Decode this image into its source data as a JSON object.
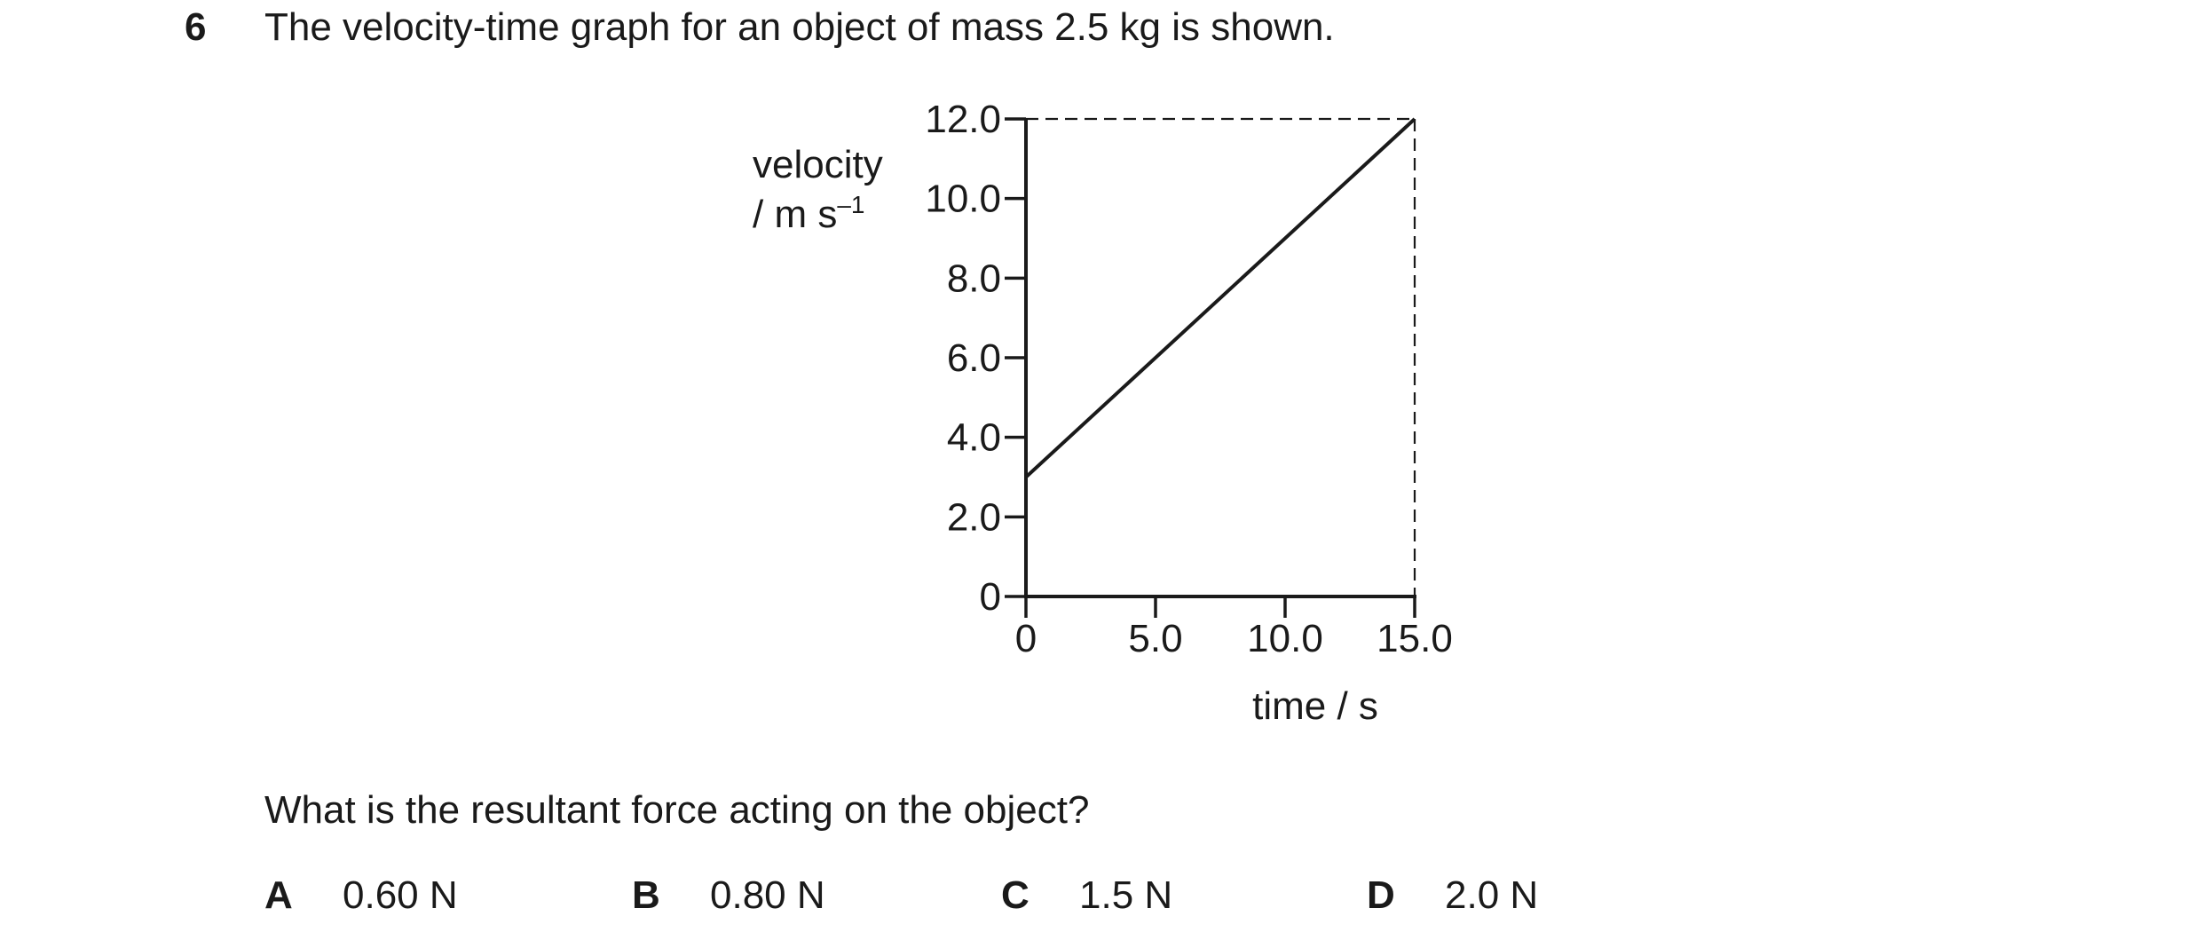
{
  "question": {
    "number": "6",
    "stem": "The velocity-time graph for an object of mass 2.5 kg is shown.",
    "prompt": "What is the resultant force acting on the object?"
  },
  "options": [
    {
      "letter": "A",
      "value": "0.60 N"
    },
    {
      "letter": "B",
      "value": "0.80 N"
    },
    {
      "letter": "C",
      "value": "1.5 N"
    },
    {
      "letter": "D",
      "value": "2.0 N"
    }
  ],
  "chart_data": {
    "type": "line",
    "ylabel_line1": "velocity",
    "ylabel_line2_base": "/ m s",
    "ylabel_line2_sup": "–1",
    "xlabel": "time / s",
    "xlim": [
      0,
      15.0
    ],
    "ylim": [
      0,
      12.0
    ],
    "x_tick_labels": [
      "0",
      "5.0",
      "10.0",
      "15.0"
    ],
    "y_tick_labels": [
      "0",
      "2.0",
      "4.0",
      "6.0",
      "8.0",
      "10.0",
      "12.0"
    ],
    "series": [
      {
        "x": [
          0,
          15.0
        ],
        "y": [
          3.0,
          12.0
        ]
      }
    ],
    "guide_lines": "dashed lines from (0, 12.0) to (15.0, 12.0) and from (15.0, 12.0) down to (15.0, 0)",
    "grid": false
  }
}
